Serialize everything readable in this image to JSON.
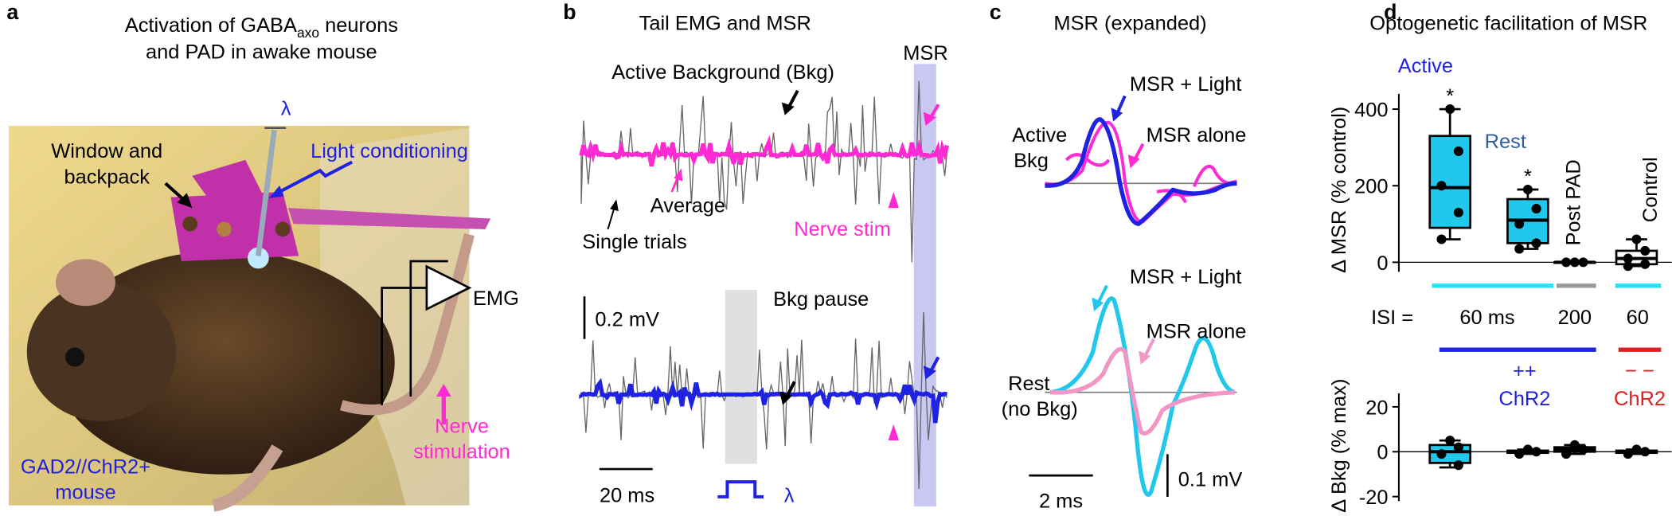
{
  "panel_a": {
    "letter": "a",
    "title_1": "Activation of GABA",
    "title_sub": "axo",
    "title_2": " neurons",
    "title_3": "and PAD in awake mouse",
    "lambda": "λ",
    "window_1": "Window and",
    "window_2": "backpack",
    "light": "Light conditioning",
    "emg": "EMG",
    "nerve_1": "Nerve",
    "nerve_2": "stimulation",
    "mouse_1": "GAD2//ChR2+",
    "mouse_2": "mouse"
  },
  "panel_b": {
    "letter": "b",
    "title": "Tail EMG and MSR",
    "msr": "MSR",
    "active_bkg": "Active Background (Bkg)",
    "average": "Average",
    "single": "Single trials",
    "nerve_stim": "Nerve stim",
    "scale_v": "0.2 mV",
    "bkg_pause": "Bkg pause",
    "scale_t": "20 ms",
    "lambda": "λ"
  },
  "panel_c": {
    "letter": "c",
    "title": "MSR (expanded)",
    "top_light": "MSR + Light",
    "top_alone": "MSR alone",
    "active_1": "Active",
    "active_2": "Bkg",
    "bottom_light": "MSR + Light",
    "bottom_alone": "MSR alone",
    "rest_1": "Rest",
    "rest_2": "(no Bkg)",
    "scale_t": "2 ms",
    "scale_v": "0.1 mV"
  },
  "panel_d": {
    "letter": "d",
    "title": "Optogenetic facilitation of MSR",
    "active": "Active",
    "rest": "Rest",
    "post_pad": "Post PAD",
    "control": "Control",
    "isi": "ISI =",
    "isi_values": [
      "60 ms",
      "200",
      "60"
    ],
    "chr2_plus_sign": "++",
    "chr2_plus": "ChR2",
    "chr2_minus_sign": "− −",
    "chr2_minus": "ChR2",
    "msr": {
      "ylabel": "Δ MSR (% control)",
      "ylim": [
        -25,
        440
      ],
      "yticks": [
        0,
        200,
        400
      ],
      "boxes": [
        {
          "min": 60,
          "q1": 90,
          "median": 195,
          "q3": 330,
          "max": 400,
          "points": [
            400,
            290,
            200,
            130,
            60
          ],
          "color": "#22c8ec",
          "star": "*"
        },
        {
          "min": 35,
          "q1": 50,
          "median": 110,
          "q3": 165,
          "max": 190,
          "points": [
            190,
            140,
            100,
            50,
            35
          ],
          "color": "#22c8ec",
          "star": "*"
        },
        {
          "min": 0,
          "q1": 0,
          "median": 0,
          "q3": 0,
          "max": 0,
          "points": [
            0,
            0,
            0
          ],
          "color": "#ffffff"
        },
        {
          "min": -10,
          "q1": -5,
          "median": 10,
          "q3": 30,
          "max": 60,
          "points": [
            60,
            30,
            10,
            -5,
            -10
          ],
          "color": "#ffffff"
        }
      ]
    },
    "bkg": {
      "ylabel": "Δ Bkg (% max)",
      "ylim": [
        -22,
        26
      ],
      "yticks": [
        -20,
        0,
        20
      ],
      "boxes": [
        {
          "min": -7,
          "q1": -5,
          "median": 0,
          "q3": 3,
          "max": 5,
          "points": [
            5,
            2,
            -1,
            -6
          ],
          "color": "#22c8ec"
        },
        {
          "min": -1,
          "q1": -0.5,
          "median": 0,
          "q3": 0.5,
          "max": 1,
          "points": [
            1,
            0,
            -1
          ],
          "color": "#22c8ec"
        },
        {
          "min": -1,
          "q1": 0,
          "median": 1,
          "q3": 2,
          "max": 3,
          "points": [
            3,
            1,
            -1
          ],
          "color": "#ffffff"
        },
        {
          "min": -1,
          "q1": -0.5,
          "median": 0,
          "q3": 0.5,
          "max": 1,
          "points": [
            1,
            0,
            -1
          ],
          "color": "#ffffff"
        }
      ]
    }
  }
}
